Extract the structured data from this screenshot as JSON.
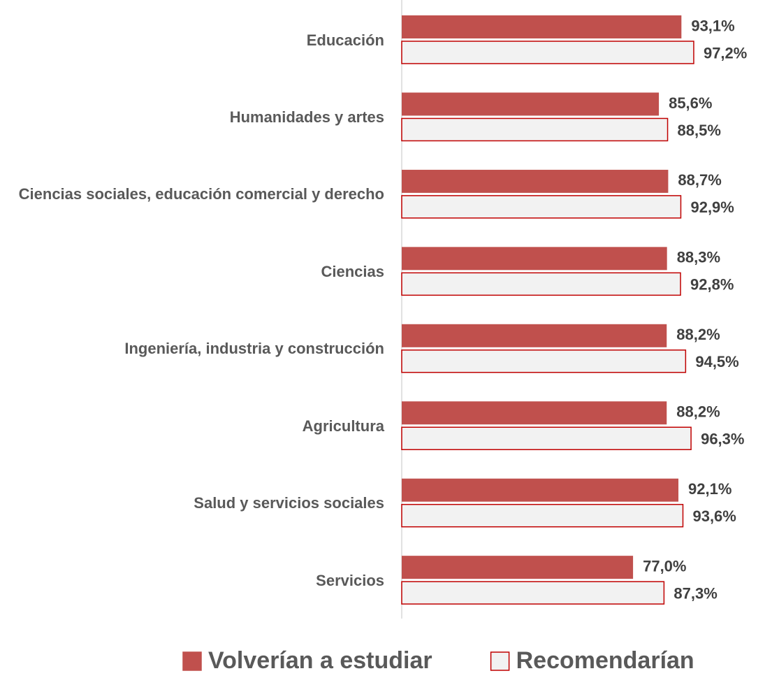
{
  "chart_data": {
    "type": "barh",
    "categories": [
      "Educación",
      "Humanidades y artes",
      "Ciencias sociales, educación comercial y derecho",
      "Ciencias",
      "Ingeniería, industria y construcción",
      "Agricultura",
      "Salud y servicios sociales",
      "Servicios"
    ],
    "series": [
      {
        "name": "Volverían a estudiar",
        "color": "#c0504d",
        "edgecolor": "#c0504d",
        "values": [
          93.1,
          85.6,
          88.7,
          88.3,
          88.2,
          88.2,
          92.1,
          77.0
        ],
        "value_labels": [
          "93,1%",
          "85,6%",
          "88,7%",
          "88,3%",
          "88,2%",
          "88,2%",
          "92,1%",
          "77,0%"
        ]
      },
      {
        "name": "Recomendarían",
        "color": "#f2f2f2",
        "edgecolor": "#c00000",
        "values": [
          97.2,
          88.5,
          92.9,
          92.8,
          94.5,
          96.3,
          93.6,
          87.3
        ],
        "value_labels": [
          "97,2%",
          "88,5%",
          "92,9%",
          "92,8%",
          "94,5%",
          "96,3%",
          "93,6%",
          "87,3%"
        ]
      }
    ],
    "legend": "bottom"
  }
}
